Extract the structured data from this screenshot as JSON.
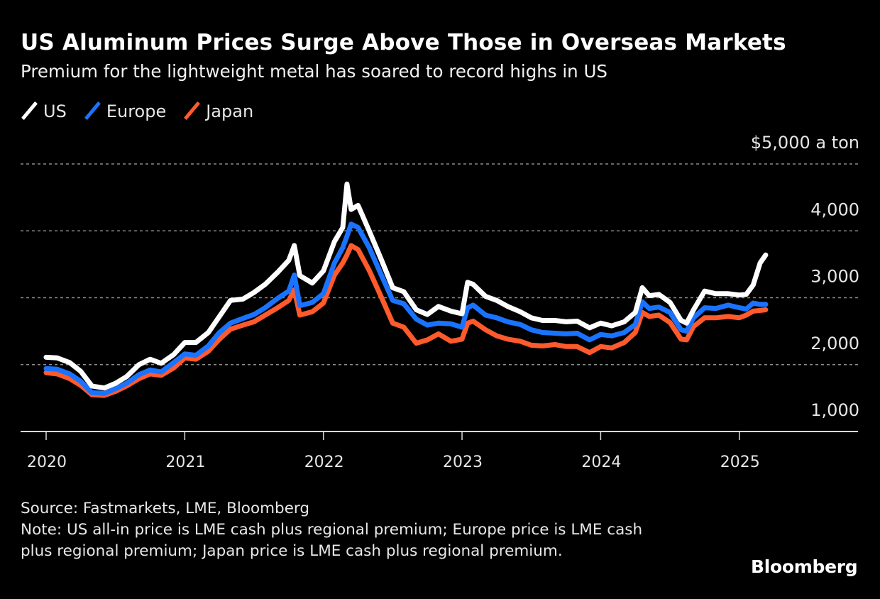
{
  "chart_data": {
    "type": "line",
    "title": "US Aluminum Prices Surge Above Those in Overseas Markets",
    "subtitle": "Premium for the lightweight metal has soared to record highs in US",
    "ylabel": "$ a ton",
    "xlabel": "",
    "ylim": [
      1000,
      5000
    ],
    "xlim": [
      2019.85,
      2025.9
    ],
    "grid": true,
    "legend_position": "top-left",
    "y_ticks": [
      {
        "value": 5000,
        "label": "$5,000 a ton"
      },
      {
        "value": 4000,
        "label": "4,000"
      },
      {
        "value": 3000,
        "label": "3,000"
      },
      {
        "value": 2000,
        "label": "2,000"
      },
      {
        "value": 1000,
        "label": "1,000"
      }
    ],
    "x_ticks": [
      {
        "value": 2020,
        "label": "2020"
      },
      {
        "value": 2021,
        "label": "2021"
      },
      {
        "value": 2022,
        "label": "2022"
      },
      {
        "value": 2023,
        "label": "2023"
      },
      {
        "value": 2024,
        "label": "2024"
      },
      {
        "value": 2025,
        "label": "2025"
      }
    ],
    "x": [
      2020.0,
      2020.08,
      2020.17,
      2020.25,
      2020.33,
      2020.42,
      2020.5,
      2020.58,
      2020.67,
      2020.75,
      2020.83,
      2020.92,
      2021.0,
      2021.08,
      2021.17,
      2021.25,
      2021.33,
      2021.42,
      2021.5,
      2021.58,
      2021.67,
      2021.75,
      2021.79,
      2021.83,
      2021.92,
      2022.0,
      2022.08,
      2022.14,
      2022.17,
      2022.2,
      2022.25,
      2022.33,
      2022.42,
      2022.5,
      2022.58,
      2022.67,
      2022.75,
      2022.83,
      2022.92,
      2023.0,
      2023.04,
      2023.08,
      2023.17,
      2023.25,
      2023.33,
      2023.42,
      2023.5,
      2023.58,
      2023.67,
      2023.75,
      2023.83,
      2023.92,
      2024.0,
      2024.08,
      2024.17,
      2024.25,
      2024.3,
      2024.35,
      2024.42,
      2024.5,
      2024.58,
      2024.62,
      2024.67,
      2024.75,
      2024.83,
      2024.92,
      2025.0,
      2025.05,
      2025.1,
      2025.15,
      2025.19
    ],
    "series": [
      {
        "name": "US",
        "color": "#ffffff",
        "values": [
          2110,
          2100,
          2030,
          1900,
          1680,
          1650,
          1720,
          1820,
          2000,
          2080,
          2020,
          2150,
          2330,
          2330,
          2480,
          2720,
          2960,
          2980,
          3080,
          3200,
          3380,
          3560,
          3780,
          3330,
          3220,
          3400,
          3840,
          4050,
          4700,
          4320,
          4380,
          4000,
          3560,
          3150,
          3090,
          2820,
          2750,
          2870,
          2800,
          2760,
          3230,
          3200,
          3020,
          2960,
          2870,
          2790,
          2700,
          2660,
          2660,
          2640,
          2650,
          2550,
          2620,
          2580,
          2640,
          2780,
          3150,
          3030,
          3050,
          2930,
          2660,
          2620,
          2820,
          3100,
          3060,
          3060,
          3040,
          3050,
          3190,
          3520,
          3640
        ]
      },
      {
        "name": "Europe",
        "color": "#1a73ff",
        "values": [
          1940,
          1930,
          1860,
          1750,
          1580,
          1570,
          1640,
          1720,
          1850,
          1920,
          1890,
          2030,
          2160,
          2140,
          2280,
          2480,
          2620,
          2690,
          2750,
          2850,
          2990,
          3100,
          3340,
          2880,
          2930,
          3060,
          3520,
          3750,
          3920,
          4100,
          4050,
          3750,
          3330,
          2960,
          2910,
          2680,
          2590,
          2620,
          2610,
          2560,
          2850,
          2890,
          2740,
          2700,
          2640,
          2600,
          2520,
          2480,
          2470,
          2460,
          2470,
          2370,
          2450,
          2430,
          2480,
          2600,
          2940,
          2840,
          2860,
          2780,
          2520,
          2500,
          2700,
          2850,
          2840,
          2890,
          2850,
          2830,
          2920,
          2900,
          2900
        ]
      },
      {
        "name": "Japan",
        "color": "#ff5a2c",
        "values": [
          1880,
          1860,
          1790,
          1690,
          1550,
          1540,
          1600,
          1680,
          1790,
          1860,
          1840,
          1950,
          2100,
          2080,
          2200,
          2380,
          2530,
          2590,
          2640,
          2740,
          2850,
          2960,
          3120,
          2740,
          2790,
          2920,
          3340,
          3520,
          3640,
          3780,
          3720,
          3410,
          3000,
          2620,
          2560,
          2320,
          2370,
          2460,
          2350,
          2380,
          2620,
          2650,
          2520,
          2430,
          2380,
          2350,
          2290,
          2280,
          2300,
          2270,
          2270,
          2180,
          2270,
          2250,
          2330,
          2480,
          2780,
          2720,
          2740,
          2630,
          2380,
          2370,
          2570,
          2700,
          2700,
          2720,
          2700,
          2740,
          2800,
          2810,
          2820
        ]
      }
    ]
  },
  "header": {
    "title": "US Aluminum Prices Surge Above Those in Overseas Markets",
    "subtitle": "Premium for the lightweight metal has soared to record highs in US"
  },
  "legend": [
    {
      "label": "US",
      "color": "#ffffff"
    },
    {
      "label": "Europe",
      "color": "#1a73ff"
    },
    {
      "label": "Japan",
      "color": "#ff5a2c"
    }
  ],
  "footer": {
    "source": "Source: Fastmarkets, LME, Bloomberg",
    "note": "Note: US all-in price is LME cash plus regional premium; Europe price is LME cash plus regional premium; Japan price is LME cash plus regional premium.",
    "brand": "Bloomberg"
  }
}
